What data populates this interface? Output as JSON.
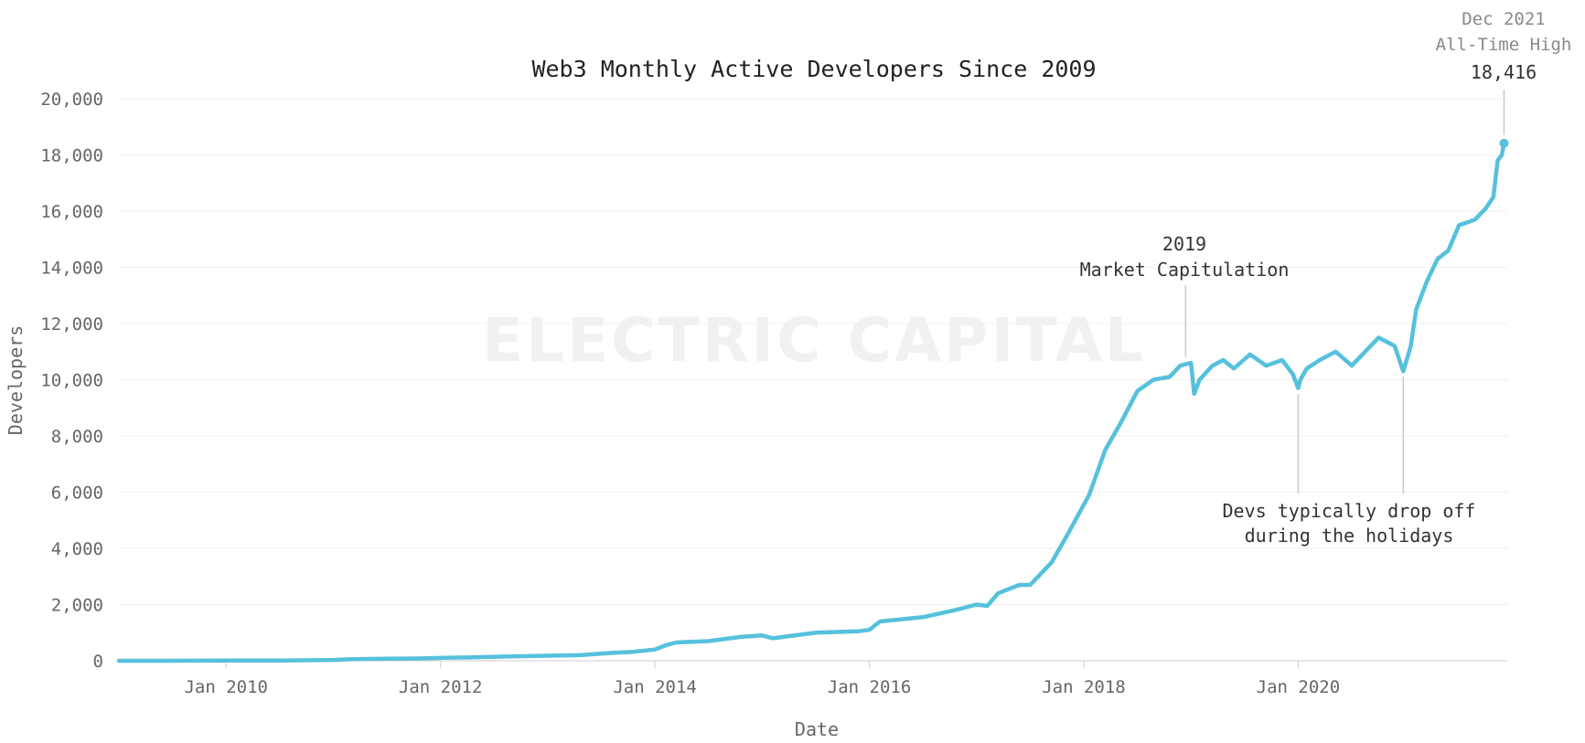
{
  "chart_data": {
    "type": "line",
    "title": "Web3 Monthly Active Developers Since 2009",
    "xlabel": "Date",
    "ylabel": "Developers",
    "xlim": [
      2009.0,
      2021.95
    ],
    "ylim": [
      0,
      20000
    ],
    "yticks": [
      "0",
      "2,000",
      "4,000",
      "6,000",
      "8,000",
      "10,000",
      "12,000",
      "14,000",
      "16,000",
      "18,000",
      "20,000"
    ],
    "xticks": [
      {
        "label": "Jan 2010",
        "value": 2010.0
      },
      {
        "label": "Jan 2012",
        "value": 2012.0
      },
      {
        "label": "Jan 2014",
        "value": 2014.0
      },
      {
        "label": "Jan 2016",
        "value": 2016.0
      },
      {
        "label": "Jan 2018",
        "value": 2018.0
      },
      {
        "label": "Jan 2020",
        "value": 2020.0
      }
    ],
    "grid": true,
    "watermark": "ELECTRIC CAPITAL",
    "series": [
      {
        "name": "Monthly Active Developers",
        "color": "#56c1dc",
        "x": [
          2009.0,
          2009.5,
          2010.0,
          2010.5,
          2011.0,
          2011.2,
          2011.5,
          2011.8,
          2012.0,
          2012.3,
          2012.6,
          2013.0,
          2013.3,
          2013.6,
          2013.8,
          2014.0,
          2014.1,
          2014.2,
          2014.5,
          2014.8,
          2015.0,
          2015.1,
          2015.5,
          2015.9,
          2016.0,
          2016.1,
          2016.5,
          2016.8,
          2017.0,
          2017.1,
          2017.2,
          2017.4,
          2017.5,
          2017.7,
          2017.85,
          2017.95,
          2018.05,
          2018.2,
          2018.35,
          2018.5,
          2018.65,
          2018.8,
          2018.9,
          2019.0,
          2019.03,
          2019.08,
          2019.2,
          2019.3,
          2019.4,
          2019.55,
          2019.7,
          2019.85,
          2019.95,
          2020.0,
          2020.02,
          2020.08,
          2020.2,
          2020.35,
          2020.5,
          2020.6,
          2020.75,
          2020.9,
          2020.98,
          2021.05,
          2021.1,
          2021.2,
          2021.3,
          2021.4,
          2021.5,
          2021.58,
          2021.65,
          2021.75,
          2021.82,
          2021.86,
          2021.9,
          2021.92
        ],
        "y": [
          0,
          0,
          5,
          10,
          30,
          60,
          70,
          80,
          100,
          120,
          150,
          180,
          200,
          280,
          320,
          400,
          550,
          650,
          700,
          850,
          900,
          800,
          1000,
          1050,
          1100,
          1400,
          1550,
          1800,
          2000,
          1950,
          2400,
          2700,
          2700,
          3500,
          4500,
          5200,
          5900,
          7500,
          8500,
          9600,
          10000,
          10100,
          10500,
          10600,
          9500,
          10000,
          10500,
          10700,
          10400,
          10900,
          10500,
          10700,
          10200,
          9700,
          10000,
          10400,
          10700,
          11000,
          10500,
          10900,
          11500,
          11200,
          10300,
          11200,
          12500,
          13500,
          14300,
          14600,
          15500,
          15600,
          15700,
          16100,
          16500,
          17800,
          18000,
          18416
        ]
      }
    ],
    "annotations": [
      {
        "lines": [
          "2019",
          "Market Capitulation"
        ],
        "x": 2018.95,
        "y": 10600
      },
      {
        "lines": [
          "Devs typically drop off",
          "during the holidays"
        ],
        "targets": [
          {
            "x": 2020.0,
            "y": 9700
          },
          {
            "x": 2020.98,
            "y": 10300
          }
        ]
      },
      {
        "lines": [
          "Dec 2021",
          "All-Time High"
        ],
        "value": "18,416",
        "x": 2021.92,
        "y": 18416
      }
    ]
  }
}
